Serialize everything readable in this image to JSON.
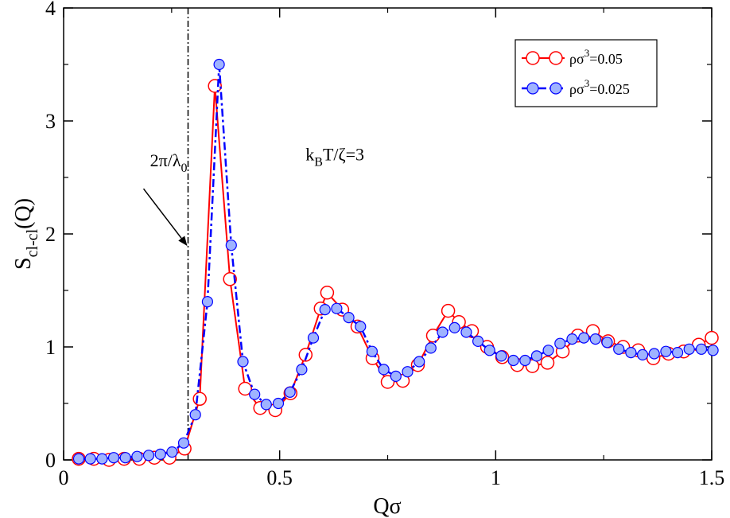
{
  "chart_data": {
    "type": "line",
    "xlabel": "Qσ",
    "ylabel": {
      "main": "S",
      "sub": "cl-cl",
      "tail": "(Q)"
    },
    "xlim": [
      0,
      1.5
    ],
    "ylim": [
      0,
      4
    ],
    "x_ticks": [
      0,
      0.5,
      1,
      1.5
    ],
    "x_tick_labels": [
      "0",
      "0.5",
      "1",
      "1.5"
    ],
    "y_ticks": [
      0,
      1,
      2,
      3,
      4
    ],
    "y_tick_labels": [
      "0",
      "1",
      "2",
      "3",
      "4"
    ],
    "legend_position": "top-right",
    "series": [
      {
        "name": "ρσ³=0.05",
        "label_parts": {
          "pre": "ρσ",
          "sup": "3",
          "post": "=0.05"
        },
        "color": "#ff0000",
        "marker": "open-circle",
        "line_style": "solid",
        "x": [
          0.035,
          0.07,
          0.105,
          0.14,
          0.175,
          0.21,
          0.245,
          0.28,
          0.315,
          0.35,
          0.385,
          0.42,
          0.455,
          0.49,
          0.525,
          0.56,
          0.595,
          0.61,
          0.645,
          0.68,
          0.715,
          0.75,
          0.785,
          0.82,
          0.855,
          0.89,
          0.915,
          0.945,
          0.98,
          1.015,
          1.05,
          1.085,
          1.12,
          1.155,
          1.19,
          1.225,
          1.26,
          1.295,
          1.33,
          1.365,
          1.4,
          1.435,
          1.47,
          1.5
        ],
        "y": [
          0.01,
          0.01,
          0.0,
          0.01,
          0.01,
          0.02,
          0.02,
          0.1,
          0.54,
          3.31,
          1.6,
          0.63,
          0.46,
          0.44,
          0.59,
          0.93,
          1.34,
          1.48,
          1.33,
          1.18,
          0.9,
          0.69,
          0.7,
          0.84,
          1.1,
          1.32,
          1.22,
          1.14,
          1.0,
          0.91,
          0.84,
          0.83,
          0.86,
          0.96,
          1.1,
          1.14,
          1.05,
          1.0,
          0.97,
          0.9,
          0.94,
          0.96,
          1.02,
          1.08
        ]
      },
      {
        "name": "ρσ³=0.025",
        "label_parts": {
          "pre": "ρσ",
          "sup": "3",
          "post": "=0.025"
        },
        "color": "#0000ff",
        "marker": "filled-circle",
        "fill": "#9fb3ff",
        "line_style": "dash-dot",
        "x": [
          0.035,
          0.062,
          0.089,
          0.116,
          0.143,
          0.17,
          0.197,
          0.224,
          0.251,
          0.278,
          0.305,
          0.333,
          0.36,
          0.388,
          0.415,
          0.442,
          0.469,
          0.497,
          0.524,
          0.551,
          0.578,
          0.605,
          0.632,
          0.66,
          0.687,
          0.714,
          0.741,
          0.769,
          0.796,
          0.823,
          0.85,
          0.877,
          0.905,
          0.932,
          0.959,
          0.986,
          1.013,
          1.041,
          1.068,
          1.095,
          1.122,
          1.149,
          1.177,
          1.204,
          1.231,
          1.258,
          1.285,
          1.313,
          1.34,
          1.367,
          1.394,
          1.421,
          1.448,
          1.476,
          1.503
        ],
        "y": [
          0.01,
          0.01,
          0.01,
          0.02,
          0.02,
          0.03,
          0.04,
          0.05,
          0.07,
          0.15,
          0.4,
          1.4,
          3.5,
          1.9,
          0.87,
          0.58,
          0.49,
          0.5,
          0.6,
          0.8,
          1.08,
          1.33,
          1.34,
          1.26,
          1.18,
          0.96,
          0.8,
          0.74,
          0.78,
          0.87,
          0.99,
          1.13,
          1.17,
          1.13,
          1.05,
          0.97,
          0.92,
          0.88,
          0.88,
          0.92,
          0.97,
          1.03,
          1.07,
          1.08,
          1.07,
          1.04,
          0.98,
          0.95,
          0.93,
          0.94,
          0.96,
          0.95,
          0.98,
          0.98,
          0.97
        ]
      }
    ],
    "vertical_line": {
      "x": 0.288,
      "style": "dash-dot",
      "color": "#000000"
    },
    "annotations": [
      {
        "id": "wavelength",
        "parts": {
          "pre": "2π/λ",
          "sub": "0"
        },
        "text_pos": [
          0.2,
          2.6
        ],
        "arrow_from": [
          0.185,
          2.4
        ],
        "arrow_to": [
          0.285,
          1.9
        ]
      },
      {
        "id": "temperature",
        "parts": {
          "p1": "k",
          "s1": "B",
          "p2": "T/ζ=3"
        },
        "text_pos": [
          0.56,
          2.65
        ]
      }
    ]
  }
}
